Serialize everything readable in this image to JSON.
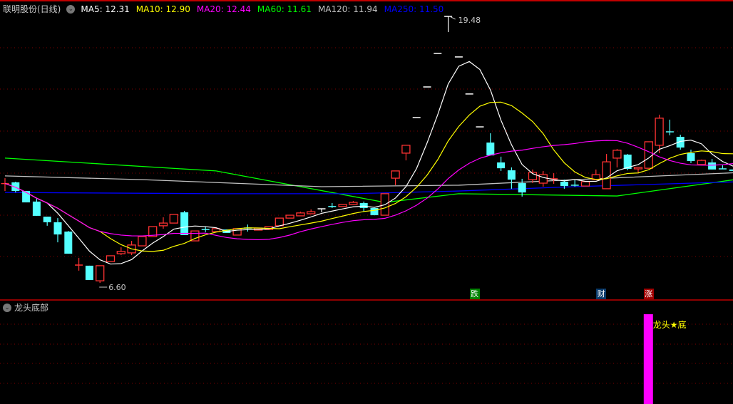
{
  "header": {
    "title": "联明股份(日线)",
    "menu_icon": "chevron-down-circle-icon",
    "ma_labels": [
      {
        "text": "MA5: 12.31",
        "color": "#ffffff"
      },
      {
        "text": "MA10: 12.90",
        "color": "#ffff00"
      },
      {
        "text": "MA20: 12.44",
        "color": "#ff00ff"
      },
      {
        "text": "MA60: 11.61",
        "color": "#00ff00"
      },
      {
        "text": "MA120: 11.94",
        "color": "#c0c0c0"
      },
      {
        "text": "MA250: 11.50",
        "color": "#0000ff"
      }
    ]
  },
  "indicator": {
    "title": "龙头底部",
    "signal_label": "龙头★底",
    "signal_index": 61,
    "signal_color": "#ff00ff",
    "label_color": "#ffff00"
  },
  "markers": [
    {
      "text": "跌",
      "index": 44.5,
      "bg": "#008000"
    },
    {
      "text": "财",
      "index": 56.5,
      "bg": "#0a3a6a"
    },
    {
      "text": "涨",
      "index": 61,
      "bg": "#a00000"
    }
  ],
  "colors": {
    "up": "#ff3232",
    "down": "#54ffff",
    "grid": "#800000",
    "flat": "#ffffff"
  },
  "chart_data": {
    "type": "candlestick",
    "ylim": [
      6.6,
      19.48
    ],
    "high_label": "19.48",
    "low_label": "6.60",
    "high_index": 42,
    "low_index": 9,
    "ohlc": [
      [
        11.39,
        11.66,
        11.04,
        11.4
      ],
      [
        11.46,
        11.49,
        10.97,
        11.04
      ],
      [
        11.04,
        11.04,
        10.49,
        10.49
      ],
      [
        10.53,
        10.7,
        9.84,
        9.84
      ],
      [
        9.8,
        9.8,
        9.36,
        9.53
      ],
      [
        9.53,
        9.73,
        8.56,
        8.94
      ],
      [
        9.08,
        9.11,
        8.01,
        8.01
      ],
      [
        7.46,
        7.81,
        7.19,
        7.46
      ],
      [
        7.43,
        7.43,
        6.74,
        6.74
      ],
      [
        6.7,
        7.43,
        6.6,
        7.43
      ],
      [
        7.63,
        7.91,
        7.63,
        7.91
      ],
      [
        8.01,
        8.32,
        7.94,
        8.12
      ],
      [
        8.05,
        8.63,
        7.94,
        8.43
      ],
      [
        8.39,
        8.84,
        8.39,
        8.84
      ],
      [
        8.84,
        9.32,
        8.84,
        9.32
      ],
      [
        9.36,
        9.77,
        9.22,
        9.49
      ],
      [
        9.49,
        9.91,
        9.49,
        9.91
      ],
      [
        10.01,
        10.08,
        8.91,
        8.91
      ],
      [
        8.63,
        9.11,
        8.63,
        9.11
      ],
      [
        9.18,
        9.32,
        9.05,
        9.17
      ],
      [
        9.08,
        9.22,
        9.08,
        9.22
      ],
      [
        9.18,
        9.18,
        9.01,
        9.01
      ],
      [
        8.91,
        9.22,
        8.91,
        9.22
      ],
      [
        9.25,
        9.42,
        9.08,
        9.24
      ],
      [
        9.15,
        9.25,
        9.15,
        9.25
      ],
      [
        9.18,
        9.32,
        9.18,
        9.32
      ],
      [
        9.36,
        9.73,
        9.36,
        9.73
      ],
      [
        9.73,
        9.87,
        9.73,
        9.87
      ],
      [
        9.84,
        10.04,
        9.84,
        9.98
      ],
      [
        9.94,
        10.15,
        9.94,
        10.04
      ],
      [
        10.18,
        10.18,
        10.01,
        10.18
      ],
      [
        10.29,
        10.46,
        10.22,
        10.28
      ],
      [
        10.29,
        10.39,
        10.29,
        10.39
      ],
      [
        10.39,
        10.56,
        10.39,
        10.49
      ],
      [
        10.46,
        10.53,
        10.04,
        10.22
      ],
      [
        10.22,
        10.22,
        9.87,
        9.87
      ],
      [
        9.87,
        10.91,
        9.87,
        10.91
      ],
      [
        11.66,
        12.01,
        11.32,
        12.01
      ],
      [
        12.87,
        13.25,
        12.52,
        13.25
      ],
      [
        14.59,
        14.59,
        14.59,
        14.59
      ],
      [
        16.07,
        16.07,
        16.07,
        16.07
      ],
      [
        17.69,
        17.69,
        17.69,
        17.69
      ],
      [
        19.48,
        19.48,
        18.72,
        19.48
      ],
      [
        17.52,
        17.52,
        17.52,
        17.52
      ],
      [
        15.73,
        15.73,
        15.73,
        15.73
      ],
      [
        14.14,
        14.14,
        14.14,
        14.14
      ],
      [
        13.38,
        13.83,
        12.76,
        12.76
      ],
      [
        12.42,
        12.7,
        12.01,
        12.14
      ],
      [
        12.04,
        12.18,
        11.15,
        11.59
      ],
      [
        11.42,
        11.63,
        10.77,
        10.97
      ],
      [
        11.59,
        12.08,
        11.42,
        11.94
      ],
      [
        11.42,
        12.01,
        11.25,
        11.83
      ],
      [
        11.62,
        11.9,
        11.39,
        11.63
      ],
      [
        11.49,
        11.59,
        11.15,
        11.28
      ],
      [
        11.32,
        11.56,
        11.25,
        11.31
      ],
      [
        11.28,
        11.49,
        11.28,
        11.49
      ],
      [
        11.59,
        12.08,
        11.59,
        11.83
      ],
      [
        11.15,
        12.83,
        11.15,
        12.45
      ],
      [
        12.63,
        13.07,
        12.18,
        13.01
      ],
      [
        12.8,
        12.83,
        12.04,
        12.11
      ],
      [
        12.11,
        12.18,
        11.94,
        12.18
      ],
      [
        12.14,
        13.42,
        12.14,
        13.42
      ],
      [
        13.25,
        14.73,
        12.87,
        14.56
      ],
      [
        13.9,
        14.49,
        13.73,
        13.89
      ],
      [
        13.66,
        13.76,
        13.04,
        13.14
      ],
      [
        12.87,
        13.04,
        12.39,
        12.49
      ],
      [
        12.32,
        12.56,
        12.32,
        12.52
      ],
      [
        12.42,
        12.59,
        12.08,
        12.08
      ],
      [
        12.11,
        12.28,
        12.11,
        12.1
      ],
      [
        12.08,
        12.08,
        12.01,
        12.01
      ]
    ],
    "ma_periods": [
      5,
      10,
      20
    ],
    "ma_colors": [
      "#ffffff",
      "#ffff00",
      "#ff00ff"
    ],
    "long_ma": [
      {
        "name": "MA60",
        "color": "#00ff00",
        "points": [
          [
            0,
            12.63
          ],
          [
            20,
            12.01
          ],
          [
            36,
            10.49
          ],
          [
            43,
            10.91
          ],
          [
            58,
            10.8
          ],
          [
            69,
            11.58
          ]
        ]
      },
      {
        "name": "MA120",
        "color": "#c0c0c0",
        "points": [
          [
            0,
            11.77
          ],
          [
            13,
            11.59
          ],
          [
            30,
            11.25
          ],
          [
            43,
            11.32
          ],
          [
            54,
            11.59
          ],
          [
            69,
            11.92
          ]
        ]
      },
      {
        "name": "MA250",
        "color": "#0000ff",
        "points": [
          [
            0,
            10.97
          ],
          [
            20,
            10.91
          ],
          [
            33,
            10.91
          ],
          [
            43,
            11.04
          ],
          [
            54,
            11.25
          ],
          [
            69,
            11.48
          ]
        ]
      }
    ],
    "grid": true
  }
}
